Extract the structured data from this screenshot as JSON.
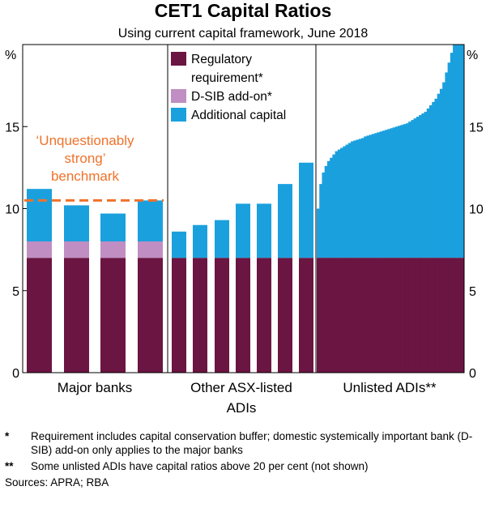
{
  "chart_data": {
    "type": "bar",
    "title": "CET1 Capital Ratios",
    "subtitle": "Using current capital framework, June 2018",
    "y_unit": "%",
    "ylim": [
      0,
      20
    ],
    "yticks": [
      0,
      5,
      10,
      15
    ],
    "grid": false,
    "legend_placement": "top-center",
    "series": [
      {
        "name": "Regulatory requirement*",
        "key": "regulatory",
        "color": "#6b1542"
      },
      {
        "name": "D-SIB add-on*",
        "key": "dsib",
        "color": "#c08ec2"
      },
      {
        "name": "Additional capital",
        "key": "additional",
        "color": "#1ba0de"
      }
    ],
    "legend_lines": [
      "Regulatory",
      "requirement*",
      "D-SIB add-on*",
      "Additional capital"
    ],
    "panels": [
      {
        "label": "Major banks",
        "bars": [
          {
            "regulatory": 7.0,
            "dsib": 1.0,
            "additional": 3.2
          },
          {
            "regulatory": 7.0,
            "dsib": 1.0,
            "additional": 2.2
          },
          {
            "regulatory": 7.0,
            "dsib": 1.0,
            "additional": 1.7
          },
          {
            "regulatory": 7.0,
            "dsib": 1.0,
            "additional": 2.5
          }
        ],
        "benchmark": 10.5
      },
      {
        "label_lines": [
          "Other ASX-listed",
          "ADIs"
        ],
        "bars": [
          {
            "regulatory": 7.0,
            "dsib": 0,
            "additional": 1.6
          },
          {
            "regulatory": 7.0,
            "dsib": 0,
            "additional": 2.0
          },
          {
            "regulatory": 7.0,
            "dsib": 0,
            "additional": 2.3
          },
          {
            "regulatory": 7.0,
            "dsib": 0,
            "additional": 3.3
          },
          {
            "regulatory": 7.0,
            "dsib": 0,
            "additional": 3.3
          },
          {
            "regulatory": 7.0,
            "dsib": 0,
            "additional": 4.5
          },
          {
            "regulatory": 7.0,
            "dsib": 0,
            "additional": 5.8
          }
        ]
      },
      {
        "label": "Unlisted ADIs**",
        "regulatory": 7.0,
        "totals": [
          10.0,
          11.5,
          12.2,
          12.6,
          12.9,
          13.1,
          13.3,
          13.5,
          13.6,
          13.7,
          13.8,
          13.9,
          14.0,
          14.1,
          14.15,
          14.2,
          14.25,
          14.3,
          14.4,
          14.45,
          14.5,
          14.55,
          14.6,
          14.65,
          14.7,
          14.75,
          14.8,
          14.85,
          14.9,
          14.95,
          15.0,
          15.05,
          15.1,
          15.15,
          15.2,
          15.3,
          15.4,
          15.5,
          15.6,
          15.7,
          15.8,
          15.9,
          16.1,
          16.3,
          16.5,
          16.7,
          17.0,
          17.3,
          17.7,
          18.3,
          18.9,
          19.5,
          20.0,
          20.0,
          20.0,
          20.0
        ]
      }
    ],
    "annotation_lines": [
      "‘Unquestionably",
      "strong’",
      "benchmark"
    ]
  },
  "notes": [
    {
      "mark": "*",
      "text": "Requirement includes capital conservation buffer; domestic systemically important bank (D-SIB) add-on only applies to the major banks"
    },
    {
      "mark": "**",
      "text": "Some unlisted ADIs have capital ratios above 20 per cent (not shown)"
    }
  ],
  "sources": "Sources: APRA; RBA",
  "colors": {
    "benchmark": "#f0722a"
  }
}
